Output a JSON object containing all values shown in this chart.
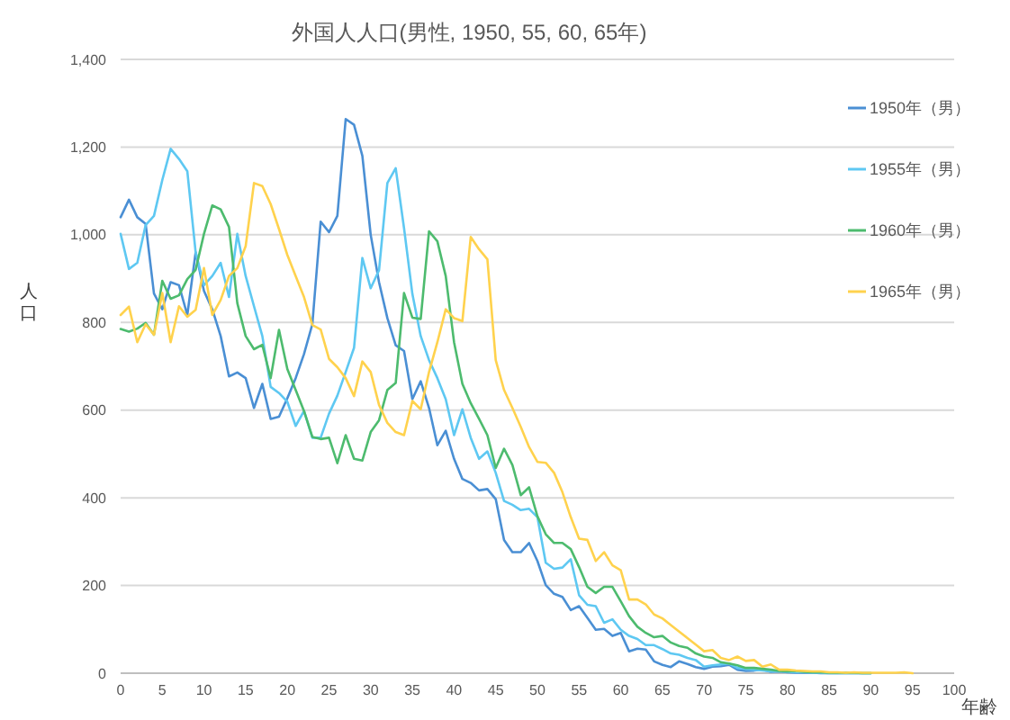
{
  "chart_data": {
    "type": "line",
    "title": "外国人人口(男性, 1950, 55, 60, 65年)",
    "xlabel": "年齢",
    "ylabel": "人口",
    "x": [
      0,
      1,
      2,
      3,
      4,
      5,
      6,
      7,
      8,
      9,
      10,
      11,
      12,
      13,
      14,
      15,
      16,
      17,
      18,
      19,
      20,
      21,
      22,
      23,
      24,
      25,
      26,
      27,
      28,
      29,
      30,
      31,
      32,
      33,
      34,
      35,
      36,
      37,
      38,
      39,
      40,
      41,
      42,
      43,
      44,
      45,
      46,
      47,
      48,
      49,
      50,
      51,
      52,
      53,
      54,
      55,
      56,
      57,
      58,
      59,
      60,
      61,
      62,
      63,
      64,
      65,
      66,
      67,
      68,
      69,
      70,
      71,
      72,
      73,
      74,
      75,
      76,
      77,
      78,
      79,
      80,
      81,
      82,
      83,
      84,
      85,
      86,
      87,
      88,
      89,
      90,
      91,
      92,
      93,
      94,
      95
    ],
    "series": [
      {
        "name": "1950年（男）",
        "color": "#4a8fd4",
        "values": [
          1040,
          1080,
          1040,
          1025,
          866,
          830,
          892,
          885,
          817,
          960,
          872,
          830,
          769,
          677,
          686,
          673,
          605,
          660,
          580,
          585,
          627,
          673,
          728,
          796,
          1030,
          1006,
          1043,
          1264,
          1251,
          1180,
          1000,
          892,
          810,
          748,
          735,
          625,
          666,
          605,
          520,
          553,
          489,
          443,
          434,
          417,
          420,
          397,
          304,
          276,
          276,
          297,
          256,
          201,
          181,
          174,
          144,
          153,
          126,
          99,
          101,
          85,
          92,
          50,
          56,
          54,
          27,
          19,
          14,
          27,
          21,
          14,
          10,
          15,
          16,
          19,
          8,
          5,
          6,
          8,
          3,
          4,
          2,
          1,
          1,
          1,
          0,
          0,
          0,
          0,
          0,
          0,
          0,
          null,
          null,
          null,
          null,
          null
        ]
      },
      {
        "name": "1955年（男）",
        "color": "#5ec8f2",
        "values": [
          1002,
          922,
          936,
          1022,
          1043,
          1125,
          1196,
          1173,
          1145,
          960,
          885,
          906,
          936,
          858,
          1002,
          906,
          837,
          769,
          653,
          639,
          619,
          564,
          598,
          537,
          537,
          592,
          633,
          687,
          742,
          947,
          878,
          919,
          1118,
          1152,
          1015,
          865,
          769,
          714,
          673,
          625,
          543,
          602,
          537,
          489,
          506,
          457,
          393,
          384,
          372,
          375,
          356,
          252,
          238,
          241,
          260,
          178,
          156,
          153,
          115,
          123,
          99,
          85,
          78,
          64,
          64,
          55,
          45,
          42,
          35,
          30,
          15,
          18,
          20,
          22,
          12,
          10,
          8,
          6,
          4,
          4,
          3,
          2,
          2,
          1,
          1,
          0,
          0,
          0,
          0,
          0,
          0,
          null,
          null,
          null,
          null,
          null
        ]
      },
      {
        "name": "1960年（男）",
        "color": "#4dbb6e",
        "values": [
          785,
          779,
          786,
          799,
          772,
          895,
          854,
          862,
          899,
          920,
          1002,
          1067,
          1058,
          1018,
          844,
          769,
          739,
          749,
          673,
          783,
          694,
          646,
          598,
          539,
          534,
          537,
          479,
          543,
          489,
          485,
          550,
          577,
          646,
          662,
          867,
          811,
          808,
          1008,
          985,
          906,
          755,
          660,
          616,
          580,
          543,
          468,
          512,
          475,
          406,
          424,
          358,
          317,
          297,
          297,
          283,
          242,
          197,
          183,
          197,
          197,
          164,
          130,
          106,
          92,
          82,
          85,
          70,
          62,
          58,
          45,
          38,
          35,
          25,
          22,
          18,
          12,
          12,
          10,
          8,
          5,
          4,
          5,
          3,
          2,
          2,
          1,
          1,
          1,
          1,
          0,
          0,
          null,
          null,
          null,
          null,
          null
        ]
      },
      {
        "name": "1965年（男）",
        "color": "#ffd24d",
        "values": [
          817,
          836,
          755,
          796,
          772,
          867,
          755,
          837,
          813,
          829,
          924,
          817,
          851,
          906,
          924,
          974,
          1118,
          1111,
          1070,
          1013,
          954,
          906,
          858,
          794,
          784,
          717,
          698,
          673,
          632,
          711,
          687,
          612,
          571,
          550,
          543,
          621,
          602,
          687,
          755,
          830,
          810,
          803,
          995,
          967,
          944,
          714,
          646,
          605,
          562,
          516,
          482,
          480,
          457,
          413,
          356,
          307,
          304,
          256,
          276,
          246,
          235,
          168,
          168,
          157,
          134,
          125,
          110,
          95,
          80,
          65,
          50,
          53,
          35,
          30,
          38,
          28,
          30,
          15,
          20,
          8,
          8,
          6,
          5,
          4,
          4,
          2,
          2,
          1,
          2,
          1,
          1,
          1,
          1,
          1,
          2,
          0
        ]
      }
    ],
    "xlim": [
      0,
      100
    ],
    "xticks": [
      0,
      5,
      10,
      15,
      20,
      25,
      30,
      35,
      40,
      45,
      50,
      55,
      60,
      65,
      70,
      75,
      80,
      85,
      90,
      95,
      100
    ],
    "ylim": [
      0,
      1400
    ],
    "yticks": [
      0,
      200,
      400,
      600,
      800,
      {
        "value": 1000,
        "label": "1,000"
      },
      {
        "value": 1200,
        "label": "1,200"
      },
      {
        "value": 1400,
        "label": "1,400"
      }
    ],
    "grid": "y",
    "legend": "right",
    "marker": "none",
    "line_style": "solid"
  }
}
